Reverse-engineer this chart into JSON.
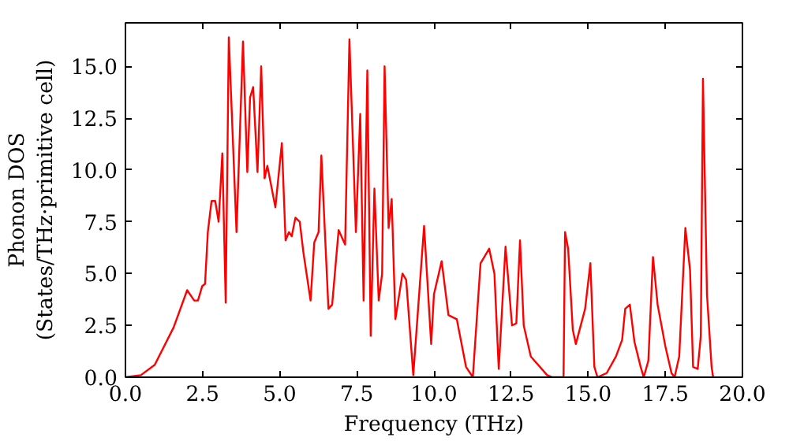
{
  "chart_data": {
    "type": "line",
    "xlabel": "Frequency (THz)",
    "ylabel": "Phonon DOS\n(States/THz·primitive cell)",
    "xlim": [
      0,
      20.0
    ],
    "ylim": [
      0,
      17.1
    ],
    "xticks": [
      {
        "value": 0,
        "label": "0.0"
      },
      {
        "value": 2.5,
        "label": "2.5"
      },
      {
        "value": 5,
        "label": "5.0"
      },
      {
        "value": 7.5,
        "label": "7.5"
      },
      {
        "value": 10,
        "label": "10.0"
      },
      {
        "value": 12.5,
        "label": "12.5"
      },
      {
        "value": 15,
        "label": "15.0"
      },
      {
        "value": 17.5,
        "label": "17.5"
      },
      {
        "value": 20,
        "label": "20.0"
      }
    ],
    "yticks": [
      {
        "value": 0,
        "label": "0.0"
      },
      {
        "value": 2.5,
        "label": "2.5"
      },
      {
        "value": 5,
        "label": "5.0"
      },
      {
        "value": 7.5,
        "label": "7.5"
      },
      {
        "value": 10,
        "label": "10.0"
      },
      {
        "value": 12.5,
        "label": "12.5"
      },
      {
        "value": 15,
        "label": "15.0"
      }
    ],
    "grid": false,
    "series": [
      {
        "color": "#ff0000",
        "x": [
          0,
          0.5,
          0.95,
          1.56,
          2.0,
          2.23,
          2.35,
          2.49,
          2.58,
          2.67,
          2.79,
          2.91,
          3.02,
          3.14,
          3.25,
          3.35,
          3.6,
          3.81,
          3.95,
          4.04,
          4.14,
          4.28,
          4.4,
          4.51,
          4.6,
          4.86,
          5.07,
          5.19,
          5.3,
          5.39,
          5.51,
          5.65,
          5.77,
          6.0,
          6.12,
          6.26,
          6.35,
          6.58,
          6.7,
          6.91,
          7.12,
          7.26,
          7.47,
          7.61,
          7.72,
          7.84,
          7.95,
          8.07,
          8.21,
          8.32,
          8.4,
          8.53,
          8.63,
          8.75,
          8.98,
          9.1,
          9.33,
          9.68,
          9.91,
          10.0,
          10.25,
          10.47,
          10.74,
          11.04,
          11.26,
          11.51,
          11.79,
          11.96,
          12.1,
          12.32,
          12.53,
          12.67,
          12.79,
          12.91,
          13.14,
          13.67,
          13.84,
          14.2,
          14.25,
          14.35,
          14.5,
          14.6,
          14.9,
          15.07,
          15.2,
          15.3,
          15.6,
          15.9,
          16.1,
          16.2,
          16.35,
          16.5,
          16.7,
          16.8,
          16.95,
          17.1,
          17.25,
          17.5,
          17.7,
          17.8,
          17.95,
          18.15,
          18.3,
          18.4,
          18.55,
          18.65,
          18.72,
          18.85,
          19.0,
          19.05
        ],
        "values": [
          0,
          0.1,
          0.6,
          2.4,
          4.2,
          3.7,
          3.7,
          4.4,
          4.5,
          7.0,
          8.5,
          8.5,
          7.5,
          10.8,
          3.6,
          16.4,
          7.0,
          16.2,
          9.9,
          13.5,
          14.0,
          9.9,
          15.0,
          9.6,
          10.2,
          8.2,
          11.3,
          6.6,
          7.0,
          6.8,
          7.7,
          7.5,
          6.0,
          3.7,
          6.5,
          7.0,
          10.7,
          3.3,
          3.5,
          7.1,
          6.4,
          16.3,
          7.0,
          12.7,
          3.7,
          14.8,
          2.0,
          9.1,
          3.7,
          5.0,
          15.0,
          7.2,
          8.6,
          2.8,
          5.0,
          4.7,
          0.1,
          7.3,
          1.6,
          4.0,
          5.6,
          3.0,
          2.8,
          0.5,
          0,
          5.5,
          6.2,
          5.0,
          0.4,
          6.3,
          2.5,
          2.6,
          6.6,
          2.5,
          1.0,
          0.1,
          0,
          0,
          7.0,
          6.2,
          2.3,
          1.6,
          3.3,
          5.5,
          0.5,
          0,
          0.2,
          1.0,
          1.8,
          3.3,
          3.5,
          1.7,
          0.5,
          0,
          0.8,
          5.8,
          3.5,
          1.5,
          0.2,
          0,
          1.0,
          7.2,
          5.2,
          0.5,
          0.4,
          2.0,
          14.4,
          4.0,
          0.5,
          0
        ]
      }
    ]
  }
}
